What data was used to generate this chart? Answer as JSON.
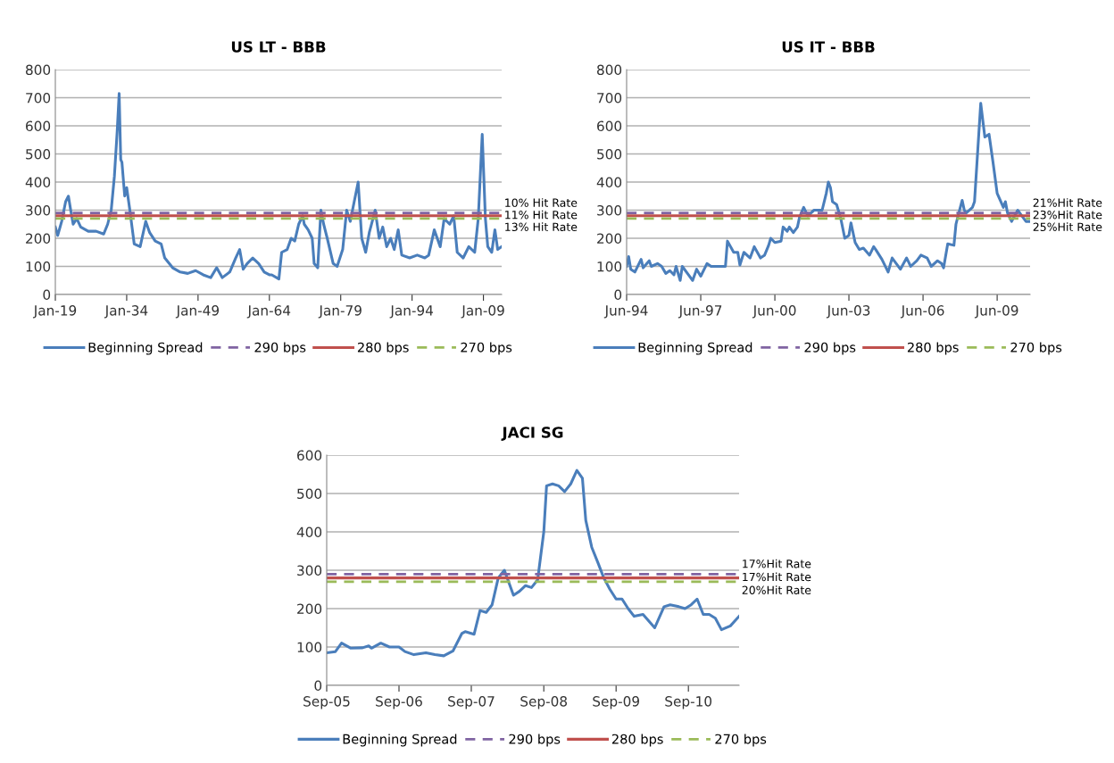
{
  "chart_data": [
    {
      "type": "line",
      "title": "US LT - BBB",
      "xlim": [
        "1919-01",
        "2012-11"
      ],
      "ylim": [
        0,
        800
      ],
      "yticks": [
        0,
        100,
        200,
        300,
        400,
        500,
        600,
        700,
        800
      ],
      "xticks": [
        {
          "value": "1919-01",
          "label": "Jan-19"
        },
        {
          "value": "1934-01",
          "label": "Jan-34"
        },
        {
          "value": "1949-01",
          "label": "Jan-49"
        },
        {
          "value": "1964-01",
          "label": "Jan-64"
        },
        {
          "value": "1979-01",
          "label": "Jan-79"
        },
        {
          "value": "1994-01",
          "label": "Jan-94"
        },
        {
          "value": "2009-01",
          "label": "Jan-09"
        }
      ],
      "grid": "y",
      "legend": "bottom",
      "series": [
        {
          "name": "Beginning Spread",
          "color": "#4a7ebb",
          "line_style": "solid",
          "x": [
            "1919-01",
            "1919-07",
            "1920-05",
            "1921-03",
            "1921-10",
            "1922-05",
            "1922-10",
            "1923-07",
            "1924-05",
            "1925-12",
            "1927-08",
            "1929-03",
            "1930-01",
            "1930-10",
            "1931-06",
            "1932-01",
            "1932-06",
            "1932-10",
            "1933-01",
            "1933-08",
            "1934-01",
            "1934-09",
            "1935-08",
            "1936-11",
            "1938-01",
            "1938-11",
            "1940-01",
            "1941-04",
            "1942-01",
            "1943-09",
            "1945-04",
            "1946-11",
            "1948-07",
            "1950-02",
            "1951-09",
            "1952-12",
            "1954-02",
            "1955-09",
            "1956-12",
            "1957-10",
            "1958-07",
            "1959-05",
            "1960-07",
            "1961-10",
            "1962-12",
            "1964-01",
            "1964-07",
            "1966-01",
            "1966-08",
            "1967-10",
            "1968-08",
            "1969-05",
            "1970-03",
            "1971-01",
            "1971-05",
            "1972-03",
            "1973-01",
            "1973-06",
            "1974-03",
            "1974-11",
            "1975-06",
            "1976-03",
            "1977-06",
            "1978-04",
            "1979-06",
            "1980-04",
            "1981-01",
            "1981-11",
            "1982-09",
            "1983-06",
            "1984-04",
            "1985-01",
            "1986-04",
            "1987-02",
            "1987-11",
            "1988-09",
            "1989-07",
            "1990-04",
            "1991-02",
            "1991-11",
            "1993-07",
            "1995-02",
            "1996-09",
            "1997-07",
            "1998-09",
            "1999-12",
            "2000-10",
            "2001-12",
            "2002-10",
            "2003-07",
            "2004-10",
            "2005-12",
            "2007-03",
            "2007-12",
            "2008-10",
            "2009-06",
            "2009-12",
            "2010-10",
            "2011-06",
            "2012-01",
            "2012-11"
          ],
          "values": [
            240,
            210,
            260,
            330,
            350,
            290,
            250,
            270,
            240,
            225,
            225,
            215,
            250,
            300,
            420,
            580,
            715,
            480,
            470,
            350,
            380,
            300,
            180,
            170,
            260,
            220,
            190,
            180,
            130,
            95,
            80,
            75,
            85,
            70,
            60,
            95,
            60,
            80,
            130,
            160,
            90,
            110,
            130,
            110,
            80,
            70,
            70,
            55,
            150,
            160,
            200,
            190,
            250,
            280,
            250,
            230,
            200,
            110,
            95,
            300,
            250,
            200,
            110,
            100,
            160,
            300,
            260,
            330,
            400,
            200,
            150,
            220,
            300,
            200,
            240,
            170,
            200,
            160,
            230,
            140,
            130,
            140,
            130,
            140,
            230,
            170,
            270,
            250,
            280,
            150,
            130,
            170,
            150,
            270,
            570,
            270,
            170,
            150,
            230,
            160,
            170
          ]
        },
        {
          "name": "290 bps",
          "color": "#8064a2",
          "line_style": "dashed",
          "x": [
            "1919-01",
            "2012-11"
          ],
          "values": [
            290,
            290
          ]
        },
        {
          "name": "280 bps",
          "color": "#c0504d",
          "line_style": "solid",
          "x": [
            "1919-01",
            "2012-11"
          ],
          "values": [
            280,
            280
          ]
        },
        {
          "name": "270 bps",
          "color": "#9bbb59",
          "line_style": "dashed",
          "x": [
            "1919-01",
            "2012-11"
          ],
          "values": [
            270,
            270
          ]
        }
      ],
      "annotations": [
        {
          "text": "10% Hit Rate",
          "x": "2012-11",
          "y": 290
        },
        {
          "text": "11% Hit Rate",
          "x": "2012-11",
          "y": 280
        },
        {
          "text": "13% Hit Rate",
          "x": "2012-11",
          "y": 270
        }
      ]
    },
    {
      "type": "line",
      "title": "US IT - BBB",
      "xlim": [
        "1994-06",
        "2010-10"
      ],
      "ylim": [
        0,
        800
      ],
      "yticks": [
        0,
        100,
        200,
        300,
        400,
        500,
        600,
        700,
        800
      ],
      "xticks": [
        {
          "value": "1994-06",
          "label": "Jun-94"
        },
        {
          "value": "1997-06",
          "label": "Jun-97"
        },
        {
          "value": "2000-06",
          "label": "Jun-00"
        },
        {
          "value": "2003-06",
          "label": "Jun-03"
        },
        {
          "value": "2006-06",
          "label": "Jun-06"
        },
        {
          "value": "2009-06",
          "label": "Jun-09"
        }
      ],
      "grid": "y",
      "legend": "bottom",
      "series": [
        {
          "name": "Beginning Spread",
          "color": "#4a7ebb",
          "line_style": "solid",
          "x": [
            "1994-06",
            "1994-07",
            "1994-08",
            "1994-10",
            "1995-01",
            "1995-02",
            "1995-05",
            "1995-06",
            "1995-09",
            "1995-11",
            "1996-01",
            "1996-03",
            "1996-05",
            "1996-06",
            "1996-08",
            "1996-09",
            "1996-12",
            "1997-02",
            "1997-04",
            "1997-06",
            "1997-09",
            "1997-11",
            "1998-02",
            "1998-06",
            "1998-07",
            "1998-10",
            "1998-12",
            "1999-01",
            "1999-03",
            "1999-06",
            "1999-08",
            "1999-11",
            "2000-01",
            "2000-03",
            "2000-04",
            "2000-06",
            "2000-09",
            "2000-10",
            "2000-12",
            "2001-01",
            "2001-03",
            "2001-05",
            "2001-06",
            "2001-08",
            "2001-10",
            "2002-01",
            "2002-05",
            "2002-07",
            "2002-08",
            "2002-09",
            "2002-10",
            "2002-12",
            "2003-02",
            "2003-04",
            "2003-06",
            "2003-07",
            "2003-09",
            "2003-11",
            "2004-01",
            "2004-04",
            "2004-06",
            "2004-07",
            "2004-10",
            "2005-01",
            "2005-03",
            "2005-05",
            "2005-07",
            "2005-10",
            "2005-12",
            "2006-03",
            "2006-05",
            "2006-08",
            "2006-10",
            "2007-01",
            "2007-03",
            "2007-04",
            "2007-06",
            "2007-09",
            "2007-10",
            "2007-11",
            "2008-01",
            "2008-02",
            "2008-03",
            "2008-06",
            "2008-07",
            "2008-10",
            "2008-12",
            "2009-02",
            "2009-04",
            "2009-06",
            "2009-09",
            "2009-10",
            "2009-11",
            "2010-01",
            "2010-04",
            "2010-06",
            "2010-08",
            "2010-10"
          ],
          "values": [
            100,
            135,
            90,
            80,
            125,
            95,
            120,
            100,
            110,
            100,
            75,
            85,
            70,
            100,
            50,
            100,
            70,
            50,
            90,
            65,
            110,
            100,
            100,
            100,
            190,
            150,
            150,
            105,
            150,
            130,
            170,
            130,
            140,
            175,
            200,
            185,
            190,
            240,
            225,
            240,
            220,
            240,
            275,
            310,
            280,
            300,
            300,
            360,
            400,
            380,
            330,
            320,
            270,
            200,
            210,
            255,
            185,
            160,
            165,
            140,
            170,
            160,
            125,
            80,
            130,
            110,
            90,
            130,
            100,
            120,
            140,
            130,
            100,
            120,
            110,
            95,
            180,
            175,
            250,
            280,
            335,
            300,
            290,
            310,
            330,
            680,
            560,
            570,
            470,
            360,
            310,
            330,
            290,
            260,
            300,
            280,
            260,
            260
          ]
        },
        {
          "name": "290 bps",
          "color": "#8064a2",
          "line_style": "dashed",
          "x": [
            "1994-06",
            "2010-10"
          ],
          "values": [
            290,
            290
          ]
        },
        {
          "name": "280 bps",
          "color": "#c0504d",
          "line_style": "solid",
          "x": [
            "1994-06",
            "2010-10"
          ],
          "values": [
            280,
            280
          ]
        },
        {
          "name": "270 bps",
          "color": "#9bbb59",
          "line_style": "dashed",
          "x": [
            "1994-06",
            "2010-10"
          ],
          "values": [
            270,
            270
          ]
        }
      ],
      "annotations": [
        {
          "text": "21%Hit Rate",
          "x": "2010-10",
          "y": 290
        },
        {
          "text": "23%Hit Rate",
          "x": "2010-10",
          "y": 280
        },
        {
          "text": "25%Hit Rate",
          "x": "2010-10",
          "y": 270
        }
      ]
    },
    {
      "type": "line",
      "title": "JACI SG",
      "xlim": [
        "2005-09-01",
        "2011-05-15"
      ],
      "ylim": [
        0,
        600
      ],
      "yticks": [
        0,
        100,
        200,
        300,
        400,
        500,
        600
      ],
      "xticks": [
        {
          "value": "2005-09-01",
          "label": "Sep-05"
        },
        {
          "value": "2006-09-01",
          "label": "Sep-06"
        },
        {
          "value": "2007-09-01",
          "label": "Sep-07"
        },
        {
          "value": "2008-09-01",
          "label": "Sep-08"
        },
        {
          "value": "2009-09-01",
          "label": "Sep-09"
        },
        {
          "value": "2010-09-01",
          "label": "Sep-10"
        }
      ],
      "grid": "y",
      "legend": "bottom",
      "series": [
        {
          "name": "Beginning Spread",
          "color": "#4a7ebb",
          "line_style": "solid",
          "x": [
            "2005-09-01",
            "2005-10-15",
            "2005-11-15",
            "2006-01-01",
            "2006-03-01",
            "2006-04-01",
            "2006-04-15",
            "2006-06-01",
            "2006-07-15",
            "2006-09-01",
            "2006-10-01",
            "2006-11-15",
            "2007-01-15",
            "2007-03-01",
            "2007-04-15",
            "2007-06-01",
            "2007-07-15",
            "2007-08-01",
            "2007-09-15",
            "2007-10-15",
            "2007-11-15",
            "2007-12-15",
            "2008-01-15",
            "2008-02-15",
            "2008-04-01",
            "2008-05-01",
            "2008-06-01",
            "2008-07-01",
            "2008-08-01",
            "2008-09-01",
            "2008-09-15",
            "2008-10-15",
            "2008-11-15",
            "2008-12-15",
            "2009-01-15",
            "2009-02-15",
            "2009-03-15",
            "2009-04-01",
            "2009-05-01",
            "2009-06-01",
            "2009-07-01",
            "2009-08-01",
            "2009-09-01",
            "2009-10-01",
            "2009-11-01",
            "2009-12-01",
            "2010-01-15",
            "2010-03-15",
            "2010-05-01",
            "2010-06-01",
            "2010-07-15",
            "2010-08-15",
            "2010-09-15",
            "2010-10-15",
            "2010-11-15",
            "2010-12-15",
            "2011-01-15",
            "2011-02-15",
            "2011-04-01",
            "2011-05-15"
          ],
          "values": [
            85,
            88,
            110,
            97,
            98,
            103,
            97,
            110,
            100,
            100,
            88,
            80,
            85,
            80,
            77,
            90,
            135,
            140,
            133,
            195,
            190,
            210,
            280,
            300,
            235,
            245,
            260,
            255,
            275,
            400,
            520,
            525,
            520,
            505,
            525,
            560,
            540,
            430,
            360,
            320,
            280,
            250,
            225,
            225,
            200,
            180,
            185,
            150,
            205,
            210,
            205,
            200,
            210,
            225,
            185,
            185,
            175,
            145,
            155,
            180
          ]
        },
        {
          "name": "290 bps",
          "color": "#8064a2",
          "line_style": "dashed",
          "x": [
            "2005-09-01",
            "2011-05-15"
          ],
          "values": [
            290,
            290
          ]
        },
        {
          "name": "280 bps",
          "color": "#c0504d",
          "line_style": "solid",
          "x": [
            "2005-09-01",
            "2011-05-15"
          ],
          "values": [
            280,
            280
          ]
        },
        {
          "name": "270 bps",
          "color": "#9bbb59",
          "line_style": "dashed",
          "x": [
            "2005-09-01",
            "2011-05-15"
          ],
          "values": [
            270,
            270
          ]
        }
      ],
      "annotations": [
        {
          "text": "17%Hit Rate",
          "x": "2011-05-15",
          "y": 290
        },
        {
          "text": "17%Hit Rate",
          "x": "2011-05-15",
          "y": 280
        },
        {
          "text": "20%Hit Rate",
          "x": "2011-05-15",
          "y": 270
        }
      ]
    }
  ]
}
